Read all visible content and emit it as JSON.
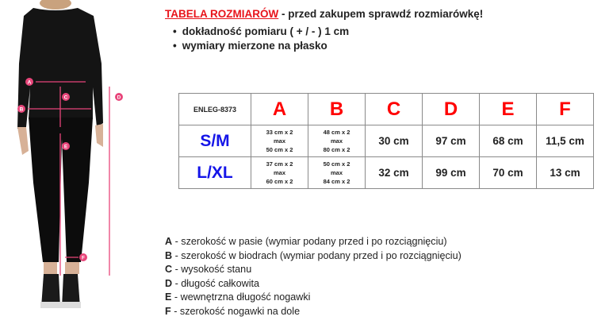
{
  "header": {
    "title_red": "TABELA ROZMIARÓW",
    "title_rest": " - przed zakupem sprawdź rozmiarówkę!",
    "bullets": [
      "dokładność pomiaru ( + / - ) 1 cm",
      "wymiary mierzone na płasko"
    ]
  },
  "table": {
    "code": "ENLEG-8373",
    "columns": [
      "A",
      "B",
      "C",
      "D",
      "E",
      "F"
    ],
    "rows": [
      {
        "size": "S/M",
        "A": [
          "33 cm x 2",
          "max",
          "50 cm x 2"
        ],
        "B": [
          "48 cm x 2",
          "max",
          "80 cm x 2"
        ],
        "C": "30 cm",
        "D": "97 cm",
        "E": "68 cm",
        "F": "11,5 cm"
      },
      {
        "size": "L/XL",
        "A": [
          "37 cm x 2",
          "max",
          "60 cm x 2"
        ],
        "B": [
          "50 cm x 2",
          "max",
          "84 cm x 2"
        ],
        "C": "32 cm",
        "D": "99 cm",
        "E": "70 cm",
        "F": "13 cm"
      }
    ]
  },
  "legend": [
    {
      "k": "A",
      "t": " - szerokość w pasie (wymiar podany przed i po rozciągnięciu)"
    },
    {
      "k": "B",
      "t": " - szerokość w biodrach (wymiar podany przed i po rozciągnięciu)"
    },
    {
      "k": "C",
      "t": " - wysokość stanu"
    },
    {
      "k": "D",
      "t": " - długość całkowita"
    },
    {
      "k": "E",
      "t": " - wewnętrzna długość nogawki"
    },
    {
      "k": "F",
      "t": " - szerokość nogawki na dole"
    }
  ],
  "colors": {
    "accent_red": "#e8141b",
    "size_blue": "#1515e8",
    "measure_pink": "#e8457a"
  }
}
